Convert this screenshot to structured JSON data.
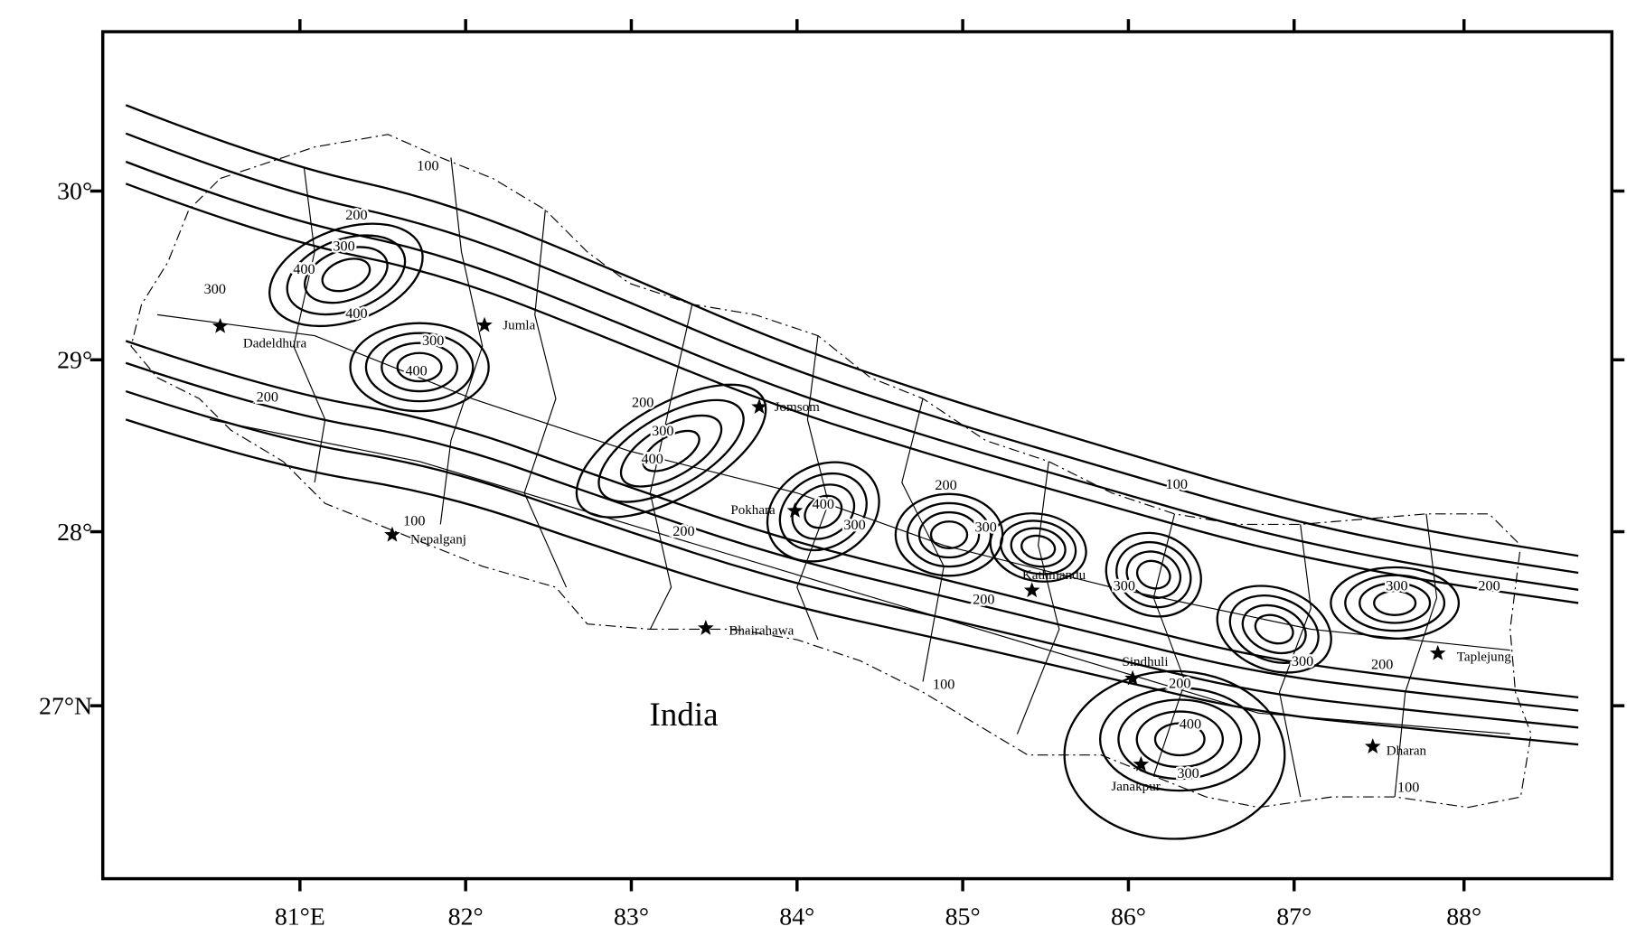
{
  "map": {
    "x_ticks": [
      "81°E",
      "82°",
      "83°",
      "84°",
      "85°",
      "86°",
      "87°",
      "88°"
    ],
    "y_ticks": [
      "30°",
      "29°",
      "28°",
      "27°N"
    ],
    "region_label": "India",
    "cities": [
      "Dadeldhura",
      "Jumla",
      "Jomsom",
      "Pokhara",
      "Nepalganj",
      "Kathmandu",
      "Bhairahawa",
      "Sindhuli",
      "Janakpur",
      "Dharan",
      "Taplejung"
    ],
    "contour_labels": [
      "100",
      "200",
      "300",
      "400",
      "300",
      "400",
      "300",
      "400",
      "200",
      "200",
      "300",
      "400",
      "100",
      "200",
      "400",
      "300",
      "100",
      "200",
      "300",
      "300",
      "200",
      "300",
      "200",
      "300",
      "200",
      "200",
      "100",
      "400",
      "300",
      "100"
    ]
  }
}
